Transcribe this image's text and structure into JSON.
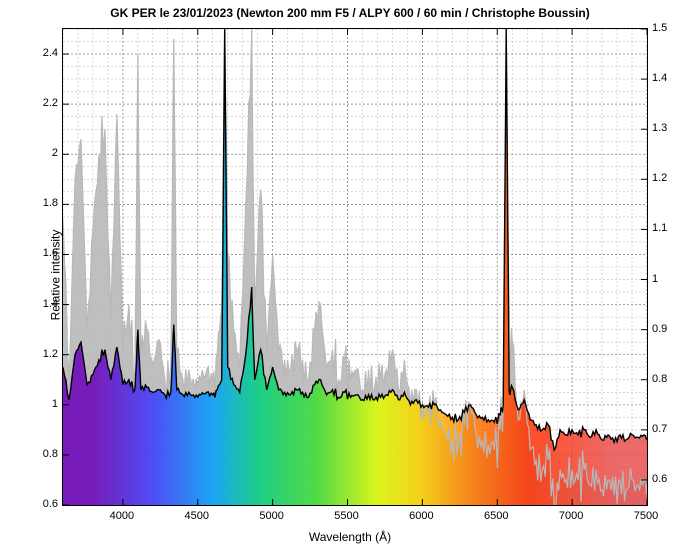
{
  "chart": {
    "type": "spectrum-line",
    "title": "GK PER le 23/01/2023 (Newton 200 mm F5 / ALPY 600 / 60 min / Christophe Boussin)",
    "title_fontsize": 12,
    "title_fontweight": "bold",
    "xlabel": "Wavelength (Å)",
    "ylabel_left": "Relative intensity",
    "label_fontsize": 12,
    "xlim": [
      3600,
      7500
    ],
    "ylim_left": [
      0.6,
      2.5
    ],
    "ylim_right": [
      0.55,
      1.5
    ],
    "xtick_start": 4000,
    "xtick_step": 500,
    "ytick_left_step": 0.2,
    "ytick_right_step": 0.1,
    "xminor_step": 100,
    "yminor_left_step": 0.05,
    "yminor_right_step": 0.025,
    "background_color": "#ffffff",
    "border_color": "#000000",
    "grid_major_color": "#808080",
    "grid_minor_color": "#b0b0b0",
    "grid_dash": "2,2",
    "line_color_black": "#000000",
    "line_width_black": 1.4,
    "line_color_gray": "#b8b8b8",
    "line_width_gray": 1.2,
    "rainbow_stops": [
      {
        "x": 3800,
        "color": "#6a00b8"
      },
      {
        "x": 4200,
        "color": "#3a3aff"
      },
      {
        "x": 4600,
        "color": "#00a0ff"
      },
      {
        "x": 4900,
        "color": "#00d080"
      },
      {
        "x": 5300,
        "color": "#40e030"
      },
      {
        "x": 5700,
        "color": "#e0ff00"
      },
      {
        "x": 6000,
        "color": "#ffd000"
      },
      {
        "x": 6300,
        "color": "#ff8000"
      },
      {
        "x": 6700,
        "color": "#ff3000"
      },
      {
        "x": 7300,
        "color": "#e85050"
      }
    ],
    "black_series": [
      {
        "x": 3600,
        "y": 1.15
      },
      {
        "x": 3640,
        "y": 1.02
      },
      {
        "x": 3680,
        "y": 1.2
      },
      {
        "x": 3720,
        "y": 1.25
      },
      {
        "x": 3760,
        "y": 1.08
      },
      {
        "x": 3800,
        "y": 1.12
      },
      {
        "x": 3840,
        "y": 1.18
      },
      {
        "x": 3880,
        "y": 1.22
      },
      {
        "x": 3920,
        "y": 1.1
      },
      {
        "x": 3960,
        "y": 1.23
      },
      {
        "x": 4000,
        "y": 1.08
      },
      {
        "x": 4040,
        "y": 1.1
      },
      {
        "x": 4080,
        "y": 1.06
      },
      {
        "x": 4100,
        "y": 1.3
      },
      {
        "x": 4120,
        "y": 1.06
      },
      {
        "x": 4160,
        "y": 1.07
      },
      {
        "x": 4200,
        "y": 1.05
      },
      {
        "x": 4240,
        "y": 1.06
      },
      {
        "x": 4280,
        "y": 1.04
      },
      {
        "x": 4320,
        "y": 1.05
      },
      {
        "x": 4340,
        "y": 1.32
      },
      {
        "x": 4360,
        "y": 1.06
      },
      {
        "x": 4400,
        "y": 1.04
      },
      {
        "x": 4440,
        "y": 1.05
      },
      {
        "x": 4480,
        "y": 1.03
      },
      {
        "x": 4520,
        "y": 1.04
      },
      {
        "x": 4560,
        "y": 1.05
      },
      {
        "x": 4600,
        "y": 1.04
      },
      {
        "x": 4630,
        "y": 1.06
      },
      {
        "x": 4660,
        "y": 1.1
      },
      {
        "x": 4680,
        "y": 2.5
      },
      {
        "x": 4700,
        "y": 1.15
      },
      {
        "x": 4740,
        "y": 1.08
      },
      {
        "x": 4780,
        "y": 1.05
      },
      {
        "x": 4820,
        "y": 1.2
      },
      {
        "x": 4860,
        "y": 1.47
      },
      {
        "x": 4880,
        "y": 1.1
      },
      {
        "x": 4920,
        "y": 1.22
      },
      {
        "x": 4960,
        "y": 1.06
      },
      {
        "x": 5000,
        "y": 1.15
      },
      {
        "x": 5040,
        "y": 1.06
      },
      {
        "x": 5080,
        "y": 1.05
      },
      {
        "x": 5120,
        "y": 1.04
      },
      {
        "x": 5160,
        "y": 1.06
      },
      {
        "x": 5200,
        "y": 1.05
      },
      {
        "x": 5240,
        "y": 1.03
      },
      {
        "x": 5280,
        "y": 1.08
      },
      {
        "x": 5320,
        "y": 1.1
      },
      {
        "x": 5360,
        "y": 1.04
      },
      {
        "x": 5400,
        "y": 1.06
      },
      {
        "x": 5440,
        "y": 1.03
      },
      {
        "x": 5480,
        "y": 1.05
      },
      {
        "x": 5520,
        "y": 1.03
      },
      {
        "x": 5560,
        "y": 1.04
      },
      {
        "x": 5600,
        "y": 1.02
      },
      {
        "x": 5640,
        "y": 1.04
      },
      {
        "x": 5680,
        "y": 1.02
      },
      {
        "x": 5720,
        "y": 1.03
      },
      {
        "x": 5760,
        "y": 1.04
      },
      {
        "x": 5800,
        "y": 1.06
      },
      {
        "x": 5840,
        "y": 1.02
      },
      {
        "x": 5880,
        "y": 1.05
      },
      {
        "x": 5920,
        "y": 1.0
      },
      {
        "x": 5960,
        "y": 1.02
      },
      {
        "x": 6000,
        "y": 1.0
      },
      {
        "x": 6040,
        "y": 0.99
      },
      {
        "x": 6080,
        "y": 1.0
      },
      {
        "x": 6120,
        "y": 0.98
      },
      {
        "x": 6160,
        "y": 0.96
      },
      {
        "x": 6200,
        "y": 0.95
      },
      {
        "x": 6240,
        "y": 0.94
      },
      {
        "x": 6280,
        "y": 0.97
      },
      {
        "x": 6320,
        "y": 1.0
      },
      {
        "x": 6360,
        "y": 0.96
      },
      {
        "x": 6400,
        "y": 0.95
      },
      {
        "x": 6440,
        "y": 0.94
      },
      {
        "x": 6480,
        "y": 0.93
      },
      {
        "x": 6520,
        "y": 0.96
      },
      {
        "x": 6540,
        "y": 1.0
      },
      {
        "x": 6560,
        "y": 2.5
      },
      {
        "x": 6580,
        "y": 1.05
      },
      {
        "x": 6600,
        "y": 1.07
      },
      {
        "x": 6640,
        "y": 0.98
      },
      {
        "x": 6680,
        "y": 1.02
      },
      {
        "x": 6720,
        "y": 0.94
      },
      {
        "x": 6760,
        "y": 0.92
      },
      {
        "x": 6800,
        "y": 0.9
      },
      {
        "x": 6840,
        "y": 0.92
      },
      {
        "x": 6880,
        "y": 0.82
      },
      {
        "x": 6920,
        "y": 0.9
      },
      {
        "x": 6960,
        "y": 0.88
      },
      {
        "x": 7000,
        "y": 0.9
      },
      {
        "x": 7040,
        "y": 0.88
      },
      {
        "x": 7080,
        "y": 0.9
      },
      {
        "x": 7120,
        "y": 0.87
      },
      {
        "x": 7160,
        "y": 0.9
      },
      {
        "x": 7200,
        "y": 0.86
      },
      {
        "x": 7240,
        "y": 0.88
      },
      {
        "x": 7280,
        "y": 0.85
      },
      {
        "x": 7320,
        "y": 0.88
      },
      {
        "x": 7360,
        "y": 0.86
      },
      {
        "x": 7400,
        "y": 0.88
      },
      {
        "x": 7440,
        "y": 0.87
      },
      {
        "x": 7480,
        "y": 0.88
      },
      {
        "x": 7500,
        "y": 0.87
      }
    ],
    "gray_series": [
      {
        "x": 3600,
        "y": 1.12
      },
      {
        "x": 3640,
        "y": 0.8
      },
      {
        "x": 3680,
        "y": 1.2
      },
      {
        "x": 3720,
        "y": 1.28
      },
      {
        "x": 3760,
        "y": 0.9
      },
      {
        "x": 3800,
        "y": 1.1
      },
      {
        "x": 3840,
        "y": 1.25
      },
      {
        "x": 3880,
        "y": 1.3
      },
      {
        "x": 3920,
        "y": 0.92
      },
      {
        "x": 3960,
        "y": 1.33
      },
      {
        "x": 4000,
        "y": 0.86
      },
      {
        "x": 4040,
        "y": 0.95
      },
      {
        "x": 4080,
        "y": 0.82
      },
      {
        "x": 4100,
        "y": 1.45
      },
      {
        "x": 4120,
        "y": 0.85
      },
      {
        "x": 4160,
        "y": 0.9
      },
      {
        "x": 4200,
        "y": 0.83
      },
      {
        "x": 4240,
        "y": 0.88
      },
      {
        "x": 4280,
        "y": 0.8
      },
      {
        "x": 4320,
        "y": 0.83
      },
      {
        "x": 4340,
        "y": 1.48
      },
      {
        "x": 4360,
        "y": 0.85
      },
      {
        "x": 4400,
        "y": 0.8
      },
      {
        "x": 4440,
        "y": 0.82
      },
      {
        "x": 4480,
        "y": 0.78
      },
      {
        "x": 4520,
        "y": 0.8
      },
      {
        "x": 4560,
        "y": 0.82
      },
      {
        "x": 4600,
        "y": 0.8
      },
      {
        "x": 4630,
        "y": 0.85
      },
      {
        "x": 4660,
        "y": 0.95
      },
      {
        "x": 4680,
        "y": 1.5
      },
      {
        "x": 4700,
        "y": 1.05
      },
      {
        "x": 4740,
        "y": 0.9
      },
      {
        "x": 4780,
        "y": 0.82
      },
      {
        "x": 4820,
        "y": 1.15
      },
      {
        "x": 4860,
        "y": 1.5
      },
      {
        "x": 4880,
        "y": 0.95
      },
      {
        "x": 4920,
        "y": 1.18
      },
      {
        "x": 4960,
        "y": 0.86
      },
      {
        "x": 5000,
        "y": 1.05
      },
      {
        "x": 5040,
        "y": 0.86
      },
      {
        "x": 5080,
        "y": 0.84
      },
      {
        "x": 5120,
        "y": 0.82
      },
      {
        "x": 5160,
        "y": 0.86
      },
      {
        "x": 5200,
        "y": 0.84
      },
      {
        "x": 5240,
        "y": 0.8
      },
      {
        "x": 5280,
        "y": 0.9
      },
      {
        "x": 5320,
        "y": 0.95
      },
      {
        "x": 5360,
        "y": 0.82
      },
      {
        "x": 5400,
        "y": 0.86
      },
      {
        "x": 5440,
        "y": 0.8
      },
      {
        "x": 5480,
        "y": 0.84
      },
      {
        "x": 5520,
        "y": 0.8
      },
      {
        "x": 5560,
        "y": 0.82
      },
      {
        "x": 5600,
        "y": 0.78
      },
      {
        "x": 5640,
        "y": 0.82
      },
      {
        "x": 5680,
        "y": 0.78
      },
      {
        "x": 5720,
        "y": 0.8
      },
      {
        "x": 5760,
        "y": 0.82
      },
      {
        "x": 5800,
        "y": 0.86
      },
      {
        "x": 5840,
        "y": 0.78
      },
      {
        "x": 5880,
        "y": 0.84
      },
      {
        "x": 5920,
        "y": 0.75
      },
      {
        "x": 5960,
        "y": 0.78
      },
      {
        "x": 6000,
        "y": 0.75
      },
      {
        "x": 6040,
        "y": 0.73
      },
      {
        "x": 6080,
        "y": 0.75
      },
      {
        "x": 6120,
        "y": 0.72
      },
      {
        "x": 6160,
        "y": 0.69
      },
      {
        "x": 6200,
        "y": 0.68
      },
      {
        "x": 6240,
        "y": 0.67
      },
      {
        "x": 6280,
        "y": 0.71
      },
      {
        "x": 6320,
        "y": 0.75
      },
      {
        "x": 6360,
        "y": 0.69
      },
      {
        "x": 6400,
        "y": 0.68
      },
      {
        "x": 6440,
        "y": 0.67
      },
      {
        "x": 6480,
        "y": 0.66
      },
      {
        "x": 6520,
        "y": 0.7
      },
      {
        "x": 6540,
        "y": 0.75
      },
      {
        "x": 6560,
        "y": 1.5
      },
      {
        "x": 6580,
        "y": 0.85
      },
      {
        "x": 6600,
        "y": 0.88
      },
      {
        "x": 6640,
        "y": 0.72
      },
      {
        "x": 6680,
        "y": 0.78
      },
      {
        "x": 6720,
        "y": 0.66
      },
      {
        "x": 6760,
        "y": 0.64
      },
      {
        "x": 6800,
        "y": 0.62
      },
      {
        "x": 6840,
        "y": 0.64
      },
      {
        "x": 6880,
        "y": 0.55
      },
      {
        "x": 6920,
        "y": 0.62
      },
      {
        "x": 6960,
        "y": 0.6
      },
      {
        "x": 7000,
        "y": 0.62
      },
      {
        "x": 7040,
        "y": 0.6
      },
      {
        "x": 7080,
        "y": 0.62
      },
      {
        "x": 7120,
        "y": 0.59
      },
      {
        "x": 7160,
        "y": 0.62
      },
      {
        "x": 7200,
        "y": 0.58
      },
      {
        "x": 7240,
        "y": 0.6
      },
      {
        "x": 7280,
        "y": 0.57
      },
      {
        "x": 7320,
        "y": 0.6
      },
      {
        "x": 7360,
        "y": 0.58
      },
      {
        "x": 7400,
        "y": 0.6
      },
      {
        "x": 7440,
        "y": 0.59
      },
      {
        "x": 7480,
        "y": 0.6
      },
      {
        "x": 7500,
        "y": 0.59
      }
    ]
  }
}
